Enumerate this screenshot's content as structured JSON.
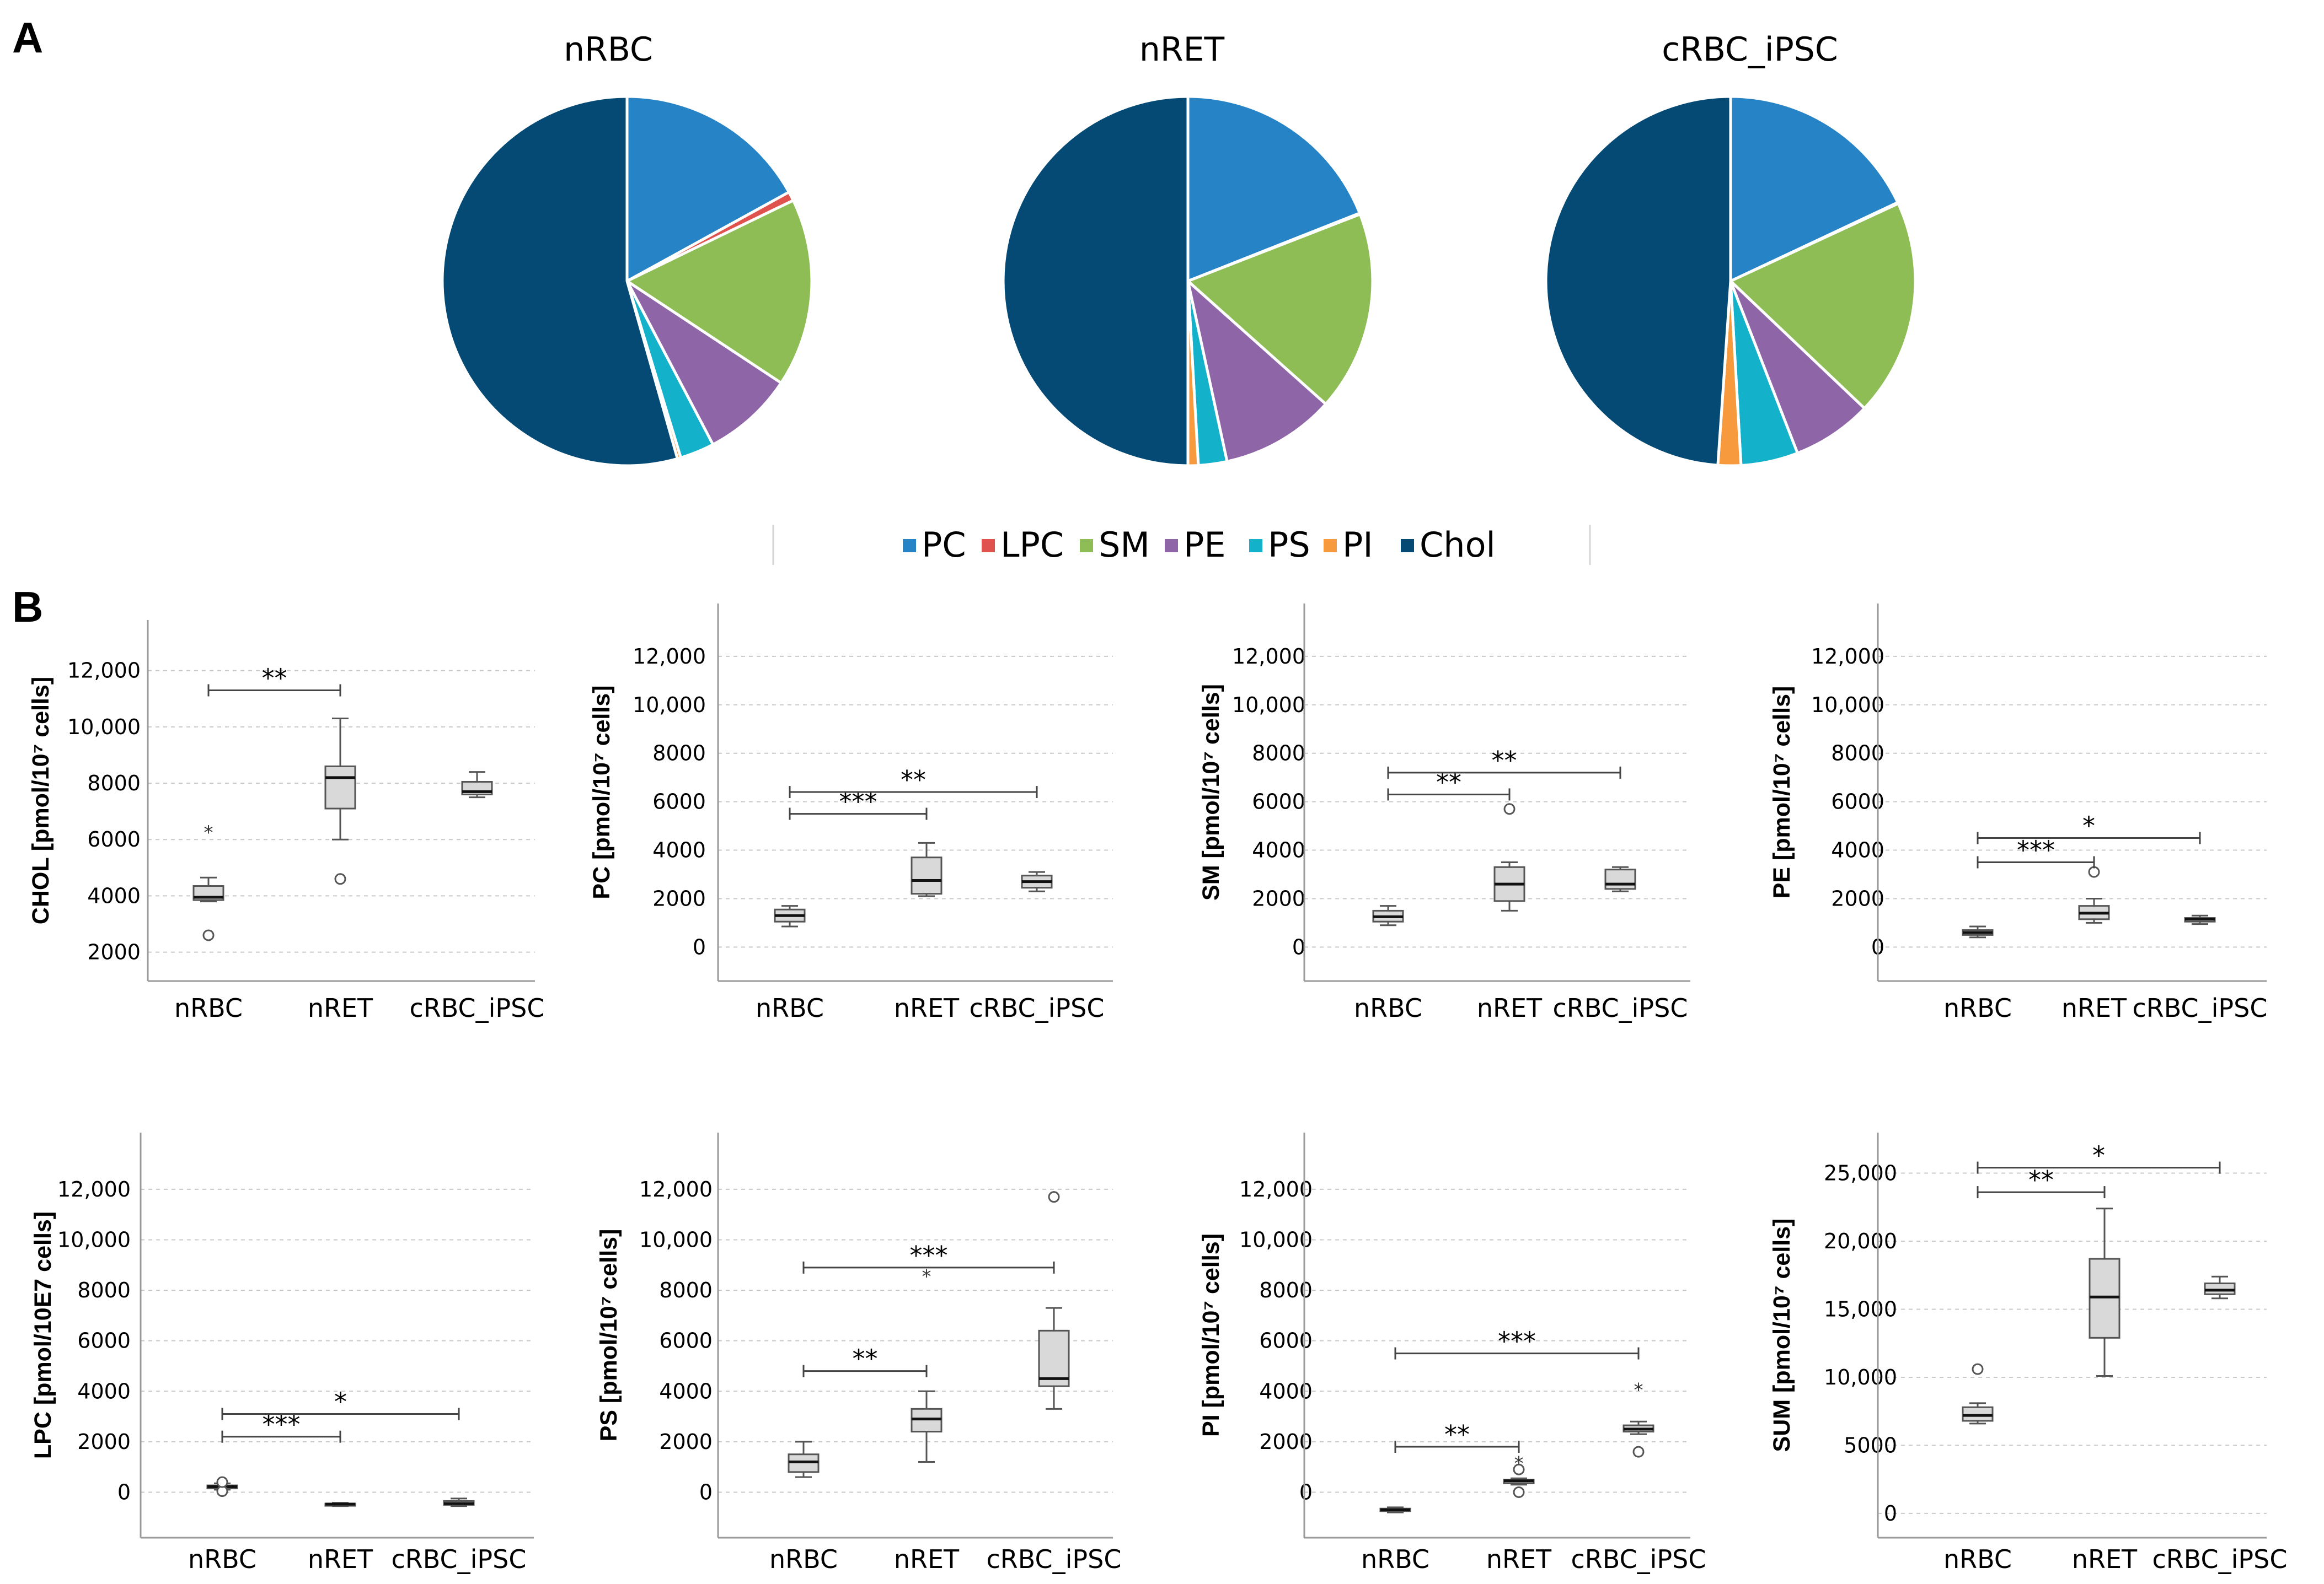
{
  "panels": {
    "a": "A",
    "b": "B"
  },
  "legend": {
    "items": [
      {
        "label": "PC",
        "color": "#2683c6"
      },
      {
        "label": "LPC",
        "color": "#e0524e"
      },
      {
        "label": "SM",
        "color": "#8fbd55"
      },
      {
        "label": "PE",
        "color": "#8e65a7"
      },
      {
        "label": "PS",
        "color": "#13b1ca"
      },
      {
        "label": "PI",
        "color": "#f79a3d"
      },
      {
        "label": "Chol",
        "color": "#044a74"
      }
    ]
  },
  "chart_data": [
    {
      "type": "pie",
      "title": "nRBC",
      "slices": [
        {
          "label": "PC",
          "value": 17.0,
          "color": "#2683c6"
        },
        {
          "label": "LPC",
          "value": 0.8,
          "color": "#e0524e"
        },
        {
          "label": "SM",
          "value": 16.5,
          "color": "#8fbd55"
        },
        {
          "label": "PE",
          "value": 8.0,
          "color": "#8e65a7"
        },
        {
          "label": "PS",
          "value": 3.0,
          "color": "#13b1ca"
        },
        {
          "label": "PI",
          "value": 0.3,
          "color": "#f79a3d"
        },
        {
          "label": "Chol",
          "value": 54.4,
          "color": "#044a74"
        }
      ]
    },
    {
      "type": "pie",
      "title": "nRET",
      "slices": [
        {
          "label": "PC",
          "value": 19.0,
          "color": "#2683c6"
        },
        {
          "label": "LPC",
          "value": 0.1,
          "color": "#e0524e"
        },
        {
          "label": "SM",
          "value": 17.5,
          "color": "#8fbd55"
        },
        {
          "label": "PE",
          "value": 10.0,
          "color": "#8e65a7"
        },
        {
          "label": "PS",
          "value": 2.5,
          "color": "#13b1ca"
        },
        {
          "label": "PI",
          "value": 0.9,
          "color": "#f79a3d"
        },
        {
          "label": "Chol",
          "value": 50.0,
          "color": "#044a74"
        }
      ]
    },
    {
      "type": "pie",
      "title": "cRBC_iPSC",
      "slices": [
        {
          "label": "PC",
          "value": 18.0,
          "color": "#2683c6"
        },
        {
          "label": "LPC",
          "value": 0.1,
          "color": "#e0524e"
        },
        {
          "label": "SM",
          "value": 19.0,
          "color": "#8fbd55"
        },
        {
          "label": "PE",
          "value": 7.0,
          "color": "#8e65a7"
        },
        {
          "label": "PS",
          "value": 5.0,
          "color": "#13b1ca"
        },
        {
          "label": "PI",
          "value": 2.0,
          "color": "#f79a3d"
        },
        {
          "label": "Chol",
          "value": 48.9,
          "color": "#044a74"
        }
      ]
    },
    {
      "type": "box",
      "ylabel": "CHOL [pmol/10⁷ cells]",
      "categories": [
        "nRBC",
        "nRET",
        "cRBC_iPSC"
      ],
      "ylim": [
        2000,
        12000
      ],
      "yticks": [
        {
          "v": 2000,
          "label": "2000"
        },
        {
          "v": 4000,
          "label": "4000"
        },
        {
          "v": 6000,
          "label": "6000"
        },
        {
          "v": 8000,
          "label": "8000"
        },
        {
          "v": 10000,
          "label": "10,000"
        },
        {
          "v": 12000,
          "label": "12,000"
        }
      ],
      "boxes": [
        {
          "min": 3800,
          "q1": 3850,
          "median": 3950,
          "q3": 4350,
          "max": 4650,
          "outliers": [
            {
              "v": 2600,
              "s": "o"
            },
            {
              "v": 6300,
              "s": "*"
            }
          ]
        },
        {
          "min": 6000,
          "q1": 7100,
          "median": 8200,
          "q3": 8600,
          "max": 10300,
          "outliers": [
            {
              "v": 4600,
              "s": "o"
            }
          ]
        },
        {
          "min": 7500,
          "q1": 7600,
          "median": 7700,
          "q3": 8050,
          "max": 8400,
          "outliers": []
        }
      ],
      "sig": [
        {
          "from": 0,
          "to": 1,
          "y": 11300,
          "label": "**"
        }
      ]
    },
    {
      "type": "box",
      "ylabel": "PC [pmol/10⁷ cells]",
      "categories": [
        "nRBC",
        "nRET",
        "cRBC_iPSC"
      ],
      "ylim": [
        0,
        12000
      ],
      "yticks": [
        {
          "v": 0,
          "label": "0"
        },
        {
          "v": 2000,
          "label": "2000"
        },
        {
          "v": 4000,
          "label": "4000"
        },
        {
          "v": 6000,
          "label": "6000"
        },
        {
          "v": 8000,
          "label": "8000"
        },
        {
          "v": 10000,
          "label": "10,000"
        },
        {
          "v": 12000,
          "label": "12,000"
        }
      ],
      "boxes": [
        {
          "min": 850,
          "q1": 1050,
          "median": 1300,
          "q3": 1550,
          "max": 1700,
          "outliers": []
        },
        {
          "min": 2100,
          "q1": 2200,
          "median": 2750,
          "q3": 3700,
          "max": 4300,
          "outliers": []
        },
        {
          "min": 2300,
          "q1": 2450,
          "median": 2700,
          "q3": 2950,
          "max": 3100,
          "outliers": []
        }
      ],
      "sig": [
        {
          "from": 0,
          "to": 1,
          "y": 5500,
          "label": "***"
        },
        {
          "from": 0,
          "to": 2,
          "y": 6400,
          "label": "**"
        }
      ]
    },
    {
      "type": "box",
      "ylabel": "SM [pmol/10⁷ cells]",
      "categories": [
        "nRBC",
        "nRET",
        "cRBC_iPSC"
      ],
      "ylim": [
        0,
        12000
      ],
      "yticks": [
        {
          "v": 0,
          "label": "0"
        },
        {
          "v": 2000,
          "label": "2000"
        },
        {
          "v": 4000,
          "label": "4000"
        },
        {
          "v": 6000,
          "label": "6000"
        },
        {
          "v": 8000,
          "label": "8000"
        },
        {
          "v": 10000,
          "label": "10,000"
        },
        {
          "v": 12000,
          "label": "12,000"
        }
      ],
      "boxes": [
        {
          "min": 900,
          "q1": 1050,
          "median": 1250,
          "q3": 1500,
          "max": 1700,
          "outliers": []
        },
        {
          "min": 1500,
          "q1": 1900,
          "median": 2600,
          "q3": 3300,
          "max": 3500,
          "outliers": [
            {
              "v": 5700,
              "s": "o"
            }
          ]
        },
        {
          "min": 2300,
          "q1": 2400,
          "median": 2600,
          "q3": 3200,
          "max": 3300,
          "outliers": []
        }
      ],
      "sig": [
        {
          "from": 0,
          "to": 1,
          "y": 6300,
          "label": "**"
        },
        {
          "from": 0,
          "to": 2,
          "y": 7200,
          "label": "**"
        }
      ]
    },
    {
      "type": "box",
      "ylabel": "PE [pmol/10⁷ cells]",
      "categories": [
        "nRBC",
        "nRET",
        "cRBC_iPSC"
      ],
      "ylim": [
        0,
        12000
      ],
      "yticks": [
        {
          "v": 0,
          "label": "0"
        },
        {
          "v": 2000,
          "label": "2000"
        },
        {
          "v": 4000,
          "label": "4000"
        },
        {
          "v": 6000,
          "label": "6000"
        },
        {
          "v": 8000,
          "label": "8000"
        },
        {
          "v": 10000,
          "label": "10,000"
        },
        {
          "v": 12000,
          "label": "12,000"
        }
      ],
      "boxes": [
        {
          "min": 400,
          "q1": 500,
          "median": 600,
          "q3": 700,
          "max": 850,
          "outliers": []
        },
        {
          "min": 1000,
          "q1": 1150,
          "median": 1400,
          "q3": 1700,
          "max": 2000,
          "outliers": [
            {
              "v": 3100,
              "s": "o"
            }
          ]
        },
        {
          "min": 950,
          "q1": 1050,
          "median": 1150,
          "q3": 1200,
          "max": 1300,
          "outliers": []
        }
      ],
      "sig": [
        {
          "from": 0,
          "to": 1,
          "y": 3500,
          "label": "***"
        },
        {
          "from": 0,
          "to": 2,
          "y": 4500,
          "label": "*"
        }
      ]
    },
    {
      "type": "box",
      "ylabel": "LPC [pmol/10E7 cells]",
      "categories": [
        "nRBC",
        "nRET",
        "cRBC_iPSC"
      ],
      "ylim": [
        -1000,
        12000
      ],
      "yticks": [
        {
          "v": 0,
          "label": "0"
        },
        {
          "v": 2000,
          "label": "2000"
        },
        {
          "v": 4000,
          "label": "4000"
        },
        {
          "v": 6000,
          "label": "6000"
        },
        {
          "v": 8000,
          "label": "8000"
        },
        {
          "v": 10000,
          "label": "10,000"
        },
        {
          "v": 12000,
          "label": "12,000"
        }
      ],
      "boxes": [
        {
          "min": 100,
          "q1": 150,
          "median": 220,
          "q3": 270,
          "max": 350,
          "outliers": [
            {
              "v": 40,
              "s": "o"
            },
            {
              "v": 400,
              "s": "o"
            }
          ]
        },
        {
          "min": -550,
          "q1": -500,
          "median": -470,
          "q3": -450,
          "max": -420,
          "outliers": []
        },
        {
          "min": -550,
          "q1": -500,
          "median": -450,
          "q3": -350,
          "max": -250,
          "outliers": []
        }
      ],
      "sig": [
        {
          "from": 0,
          "to": 1,
          "y": 2200,
          "label": "***"
        },
        {
          "from": 0,
          "to": 2,
          "y": 3100,
          "label": "*"
        }
      ]
    },
    {
      "type": "box",
      "ylabel": "PS [pmol/10⁷ cells]",
      "categories": [
        "nRBC",
        "nRET",
        "cRBC_iPSC"
      ],
      "ylim": [
        -1000,
        12000
      ],
      "yticks": [
        {
          "v": 0,
          "label": "0"
        },
        {
          "v": 2000,
          "label": "2000"
        },
        {
          "v": 4000,
          "label": "4000"
        },
        {
          "v": 6000,
          "label": "6000"
        },
        {
          "v": 8000,
          "label": "8000"
        },
        {
          "v": 10000,
          "label": "10,000"
        },
        {
          "v": 12000,
          "label": "12,000"
        }
      ],
      "boxes": [
        {
          "min": 600,
          "q1": 800,
          "median": 1200,
          "q3": 1500,
          "max": 2000,
          "outliers": []
        },
        {
          "min": 1200,
          "q1": 2400,
          "median": 2900,
          "q3": 3300,
          "max": 4000,
          "outliers": [
            {
              "v": 8600,
              "s": "*"
            }
          ]
        },
        {
          "min": 3300,
          "q1": 4200,
          "median": 4500,
          "q3": 6400,
          "max": 7300,
          "outliers": [
            {
              "v": 11700,
              "s": "o"
            }
          ]
        }
      ],
      "sig": [
        {
          "from": 0,
          "to": 1,
          "y": 4800,
          "label": "**"
        },
        {
          "from": 0,
          "to": 2,
          "y": 8900,
          "label": "***"
        }
      ]
    },
    {
      "type": "box",
      "ylabel": "PI [pmol/10⁷ cells]",
      "categories": [
        "nRBC",
        "nRET",
        "cRBC_iPSC"
      ],
      "ylim": [
        -1000,
        12000
      ],
      "yticks": [
        {
          "v": 0,
          "label": "0"
        },
        {
          "v": 2000,
          "label": "2000"
        },
        {
          "v": 4000,
          "label": "4000"
        },
        {
          "v": 6000,
          "label": "6000"
        },
        {
          "v": 8000,
          "label": "8000"
        },
        {
          "v": 10000,
          "label": "10,000"
        },
        {
          "v": 12000,
          "label": "12,000"
        }
      ],
      "boxes": [
        {
          "min": -800,
          "q1": -750,
          "median": -700,
          "q3": -650,
          "max": -600,
          "outliers": []
        },
        {
          "min": 300,
          "q1": 350,
          "median": 450,
          "q3": 500,
          "max": 550,
          "outliers": [
            {
              "v": 0,
              "s": "o"
            },
            {
              "v": 900,
              "s": "o"
            },
            {
              "v": 1200,
              "s": "*"
            }
          ]
        },
        {
          "min": 2300,
          "q1": 2400,
          "median": 2500,
          "q3": 2650,
          "max": 2800,
          "outliers": [
            {
              "v": 1600,
              "s": "o"
            },
            {
              "v": 4100,
              "s": "*"
            }
          ]
        }
      ],
      "sig": [
        {
          "from": 0,
          "to": 1,
          "y": 1800,
          "label": "**"
        },
        {
          "from": 0,
          "to": 2,
          "y": 5500,
          "label": "***"
        }
      ]
    },
    {
      "type": "box",
      "ylabel": "SUM [pmol/10⁷ cells]",
      "categories": [
        "nRBC",
        "nRET",
        "cRBC_iPSC"
      ],
      "ylim": [
        0,
        25000
      ],
      "yticks": [
        {
          "v": 0,
          "label": "0"
        },
        {
          "v": 5000,
          "label": "5000"
        },
        {
          "v": 10000,
          "label": "10,000"
        },
        {
          "v": 15000,
          "label": "15,000"
        },
        {
          "v": 20000,
          "label": "20,000"
        },
        {
          "v": 25000,
          "label": "25,000"
        }
      ],
      "boxes": [
        {
          "min": 6600,
          "q1": 6800,
          "median": 7200,
          "q3": 7800,
          "max": 8100,
          "outliers": [
            {
              "v": 10600,
              "s": "o"
            }
          ]
        },
        {
          "min": 10100,
          "q1": 12900,
          "median": 15900,
          "q3": 18700,
          "max": 22400,
          "outliers": []
        },
        {
          "min": 15800,
          "q1": 16100,
          "median": 16400,
          "q3": 16900,
          "max": 17400,
          "outliers": []
        }
      ],
      "sig": [
        {
          "from": 0,
          "to": 1,
          "y": 23600,
          "label": "**"
        },
        {
          "from": 0,
          "to": 2,
          "y": 25400,
          "label": "*"
        }
      ]
    }
  ]
}
